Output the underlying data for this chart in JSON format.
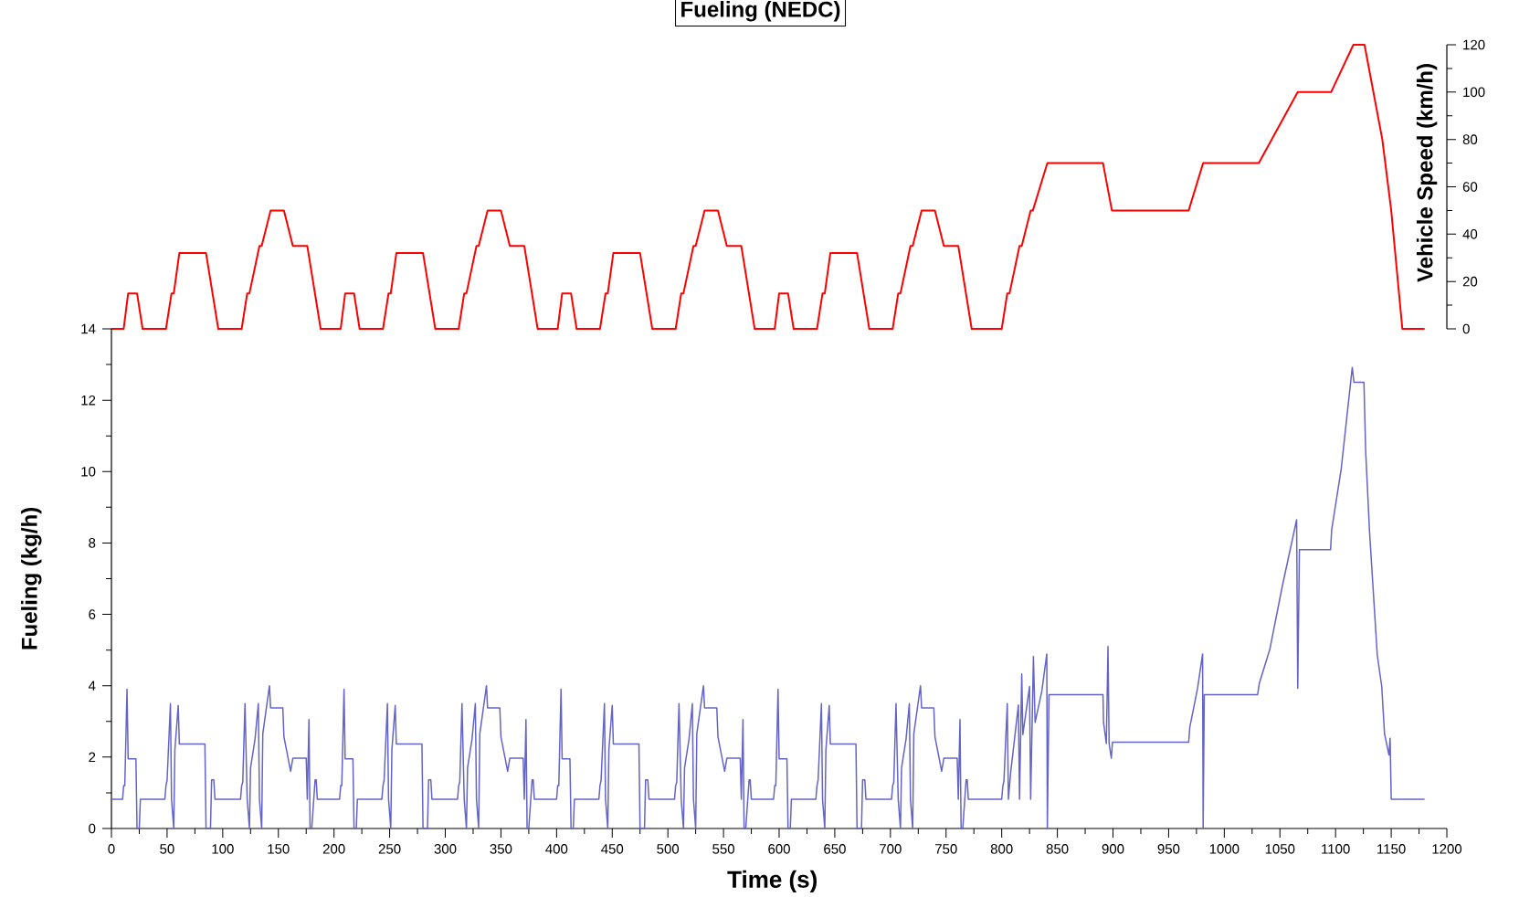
{
  "chart_data": [
    {
      "type": "line",
      "title": "Fueling (NEDC)",
      "ylabel": "Vehicle Speed (km/h)",
      "xlim": [
        0,
        1200
      ],
      "ylim": [
        0,
        120
      ],
      "yticks": [
        0,
        {
          "value": 10,
          "label": null
        },
        20,
        {
          "value": 30,
          "label": null
        },
        40,
        {
          "value": 50,
          "label": null
        },
        60,
        {
          "value": 70,
          "label": null
        },
        80,
        {
          "value": 90,
          "label": null
        },
        100,
        {
          "value": 110,
          "label": null
        },
        120
      ],
      "tick_labels": "y",
      "x": [
        0,
        11,
        15,
        23,
        28,
        49,
        54,
        56,
        61,
        85,
        96,
        117,
        122,
        124,
        133,
        135,
        143,
        155,
        163,
        176,
        188,
        206,
        210,
        218,
        223,
        244,
        249,
        251,
        256,
        280,
        291,
        312,
        317,
        319,
        328,
        330,
        338,
        350,
        358,
        371,
        383,
        401,
        405,
        413,
        418,
        439,
        444,
        446,
        451,
        475,
        486,
        507,
        512,
        514,
        523,
        525,
        533,
        545,
        553,
        566,
        578,
        596,
        600,
        608,
        613,
        634,
        639,
        641,
        646,
        670,
        681,
        702,
        707,
        709,
        718,
        720,
        728,
        740,
        748,
        761,
        773,
        800,
        805,
        807,
        816,
        818,
        826,
        828,
        841,
        891,
        899,
        968,
        981,
        1031,
        1066,
        1096,
        1116,
        1126,
        1142,
        1150,
        1160,
        1180
      ],
      "series": [
        {
          "color": "#ff0000",
          "values": [
            0,
            0,
            15,
            15,
            0,
            0,
            15,
            15,
            32,
            32,
            0,
            0,
            15,
            15,
            35,
            35,
            50,
            50,
            35,
            35,
            0,
            0,
            15,
            15,
            0,
            0,
            15,
            15,
            32,
            32,
            0,
            0,
            15,
            15,
            35,
            35,
            50,
            50,
            35,
            35,
            0,
            0,
            15,
            15,
            0,
            0,
            15,
            15,
            32,
            32,
            0,
            0,
            15,
            15,
            35,
            35,
            50,
            50,
            35,
            35,
            0,
            0,
            15,
            15,
            0,
            0,
            15,
            15,
            32,
            32,
            0,
            0,
            15,
            15,
            35,
            35,
            50,
            50,
            35,
            35,
            0,
            0,
            15,
            15,
            35,
            35,
            50,
            50,
            70,
            70,
            50,
            50,
            70,
            70,
            100,
            100,
            120,
            120,
            80,
            50,
            0,
            0
          ]
        }
      ]
    },
    {
      "type": "line",
      "xlabel": "Time (s)",
      "ylabel": "Fueling (kg/h)",
      "xlim": [
        0,
        1200
      ],
      "ylim": [
        0,
        14
      ],
      "xticks": [
        0,
        {
          "value": 25,
          "label": null
        },
        50,
        {
          "value": 75,
          "label": null
        },
        100,
        {
          "value": 125,
          "label": null
        },
        150,
        {
          "value": 175,
          "label": null
        },
        200,
        {
          "value": 225,
          "label": null
        },
        250,
        {
          "value": 275,
          "label": null
        },
        300,
        {
          "value": 325,
          "label": null
        },
        350,
        {
          "value": 375,
          "label": null
        },
        400,
        {
          "value": 425,
          "label": null
        },
        450,
        {
          "value": 475,
          "label": null
        },
        500,
        {
          "value": 525,
          "label": null
        },
        550,
        {
          "value": 575,
          "label": null
        },
        600,
        {
          "value": 625,
          "label": null
        },
        650,
        {
          "value": 675,
          "label": null
        },
        700,
        {
          "value": 725,
          "label": null
        },
        750,
        {
          "value": 775,
          "label": null
        },
        800,
        {
          "value": 825,
          "label": null
        },
        850,
        {
          "value": 875,
          "label": null
        },
        900,
        {
          "value": 925,
          "label": null
        },
        950,
        {
          "value": 975,
          "label": null
        },
        1000,
        {
          "value": 1025,
          "label": null
        },
        1050,
        {
          "value": 1075,
          "label": null
        },
        1100,
        {
          "value": 1125,
          "label": null
        },
        1150,
        {
          "value": 1175,
          "label": null
        },
        1200
      ],
      "yticks": [
        0,
        {
          "value": 1,
          "label": null
        },
        2,
        {
          "value": 3,
          "label": null
        },
        4,
        {
          "value": 5,
          "label": null
        },
        6,
        {
          "value": 7,
          "label": null
        },
        8,
        {
          "value": 9,
          "label": null
        },
        10,
        {
          "value": 11,
          "label": null
        },
        12,
        {
          "value": 13,
          "label": null
        },
        14
      ],
      "x": [
        0,
        10,
        11,
        12,
        14,
        15,
        22,
        23,
        25,
        26,
        48,
        49,
        50,
        53,
        54,
        56,
        57,
        60,
        61,
        84,
        85,
        89,
        90,
        92,
        93,
        116,
        117,
        118,
        120,
        122,
        124,
        125,
        129,
        132,
        133,
        135,
        136,
        142,
        143,
        154,
        155,
        159,
        161,
        163,
        175,
        176,
        177.5,
        178.5,
        180,
        183,
        184,
        185,
        205,
        206,
        207,
        209,
        210,
        217,
        218,
        220,
        221,
        243,
        244,
        245,
        248,
        249,
        251,
        252,
        255,
        256,
        279,
        280,
        284,
        285,
        287,
        288,
        311,
        312,
        313,
        315,
        317,
        319,
        320,
        324,
        327,
        328,
        330,
        331,
        337,
        338,
        349,
        350,
        354,
        356,
        358,
        370,
        371,
        372.5,
        373.5,
        375,
        378,
        379,
        380,
        400,
        401,
        402,
        404,
        405,
        412,
        413,
        415,
        416,
        438,
        439,
        440,
        443,
        444,
        446,
        447,
        450,
        451,
        474,
        475,
        479,
        480,
        482,
        483,
        506,
        507,
        508,
        510,
        512,
        514,
        515,
        519,
        522,
        523,
        525,
        526,
        532,
        533,
        544,
        545,
        549,
        551,
        553,
        565,
        566,
        567.5,
        568.5,
        570,
        573,
        574,
        575,
        595,
        596,
        597,
        599,
        600,
        607,
        608,
        610,
        611,
        633,
        634,
        635,
        638,
        639,
        641,
        642,
        645,
        646,
        669,
        670,
        674,
        675,
        677,
        678,
        701,
        702,
        703,
        705,
        707,
        709,
        710,
        714,
        717,
        718,
        720,
        721,
        727,
        728,
        739,
        740,
        744,
        746,
        748,
        760,
        761,
        762.5,
        763.5,
        765,
        768,
        769,
        770,
        800,
        801,
        802,
        805,
        806,
        808,
        815,
        816,
        818,
        819,
        825,
        826,
        828.5,
        830,
        836,
        840.5,
        841,
        842.5,
        891,
        891.5,
        894,
        895.5,
        896.5,
        898.5,
        899.5,
        968,
        969,
        976,
        980.5,
        981,
        982,
        1030,
        1031.5,
        1041,
        1052,
        1065,
        1066,
        1067.5,
        1095.5,
        1096.5,
        1105,
        1115,
        1116.5,
        1125.5,
        1127,
        1130.5,
        1137.5,
        1141.5,
        1144,
        1148,
        1149,
        1150,
        1180
      ],
      "series": [
        {
          "color": "#6464c8",
          "values": [
            0.82,
            0.82,
            1.2,
            1.2,
            3.9,
            1.95,
            1.95,
            0,
            0,
            0.82,
            0.82,
            1.2,
            1.35,
            3.5,
            0.82,
            0,
            2.2,
            3.45,
            2.37,
            2.37,
            0,
            0,
            1.36,
            1.36,
            0.82,
            0.82,
            1.2,
            1.3,
            3.5,
            0.82,
            0,
            1.7,
            2.5,
            3.5,
            0.82,
            0,
            2.65,
            4,
            3.38,
            3.38,
            2.57,
            1.93,
            1.6,
            1.97,
            1.97,
            0.82,
            3.05,
            0,
            0,
            1.36,
            1.36,
            0.82,
            0.82,
            1.2,
            1.2,
            3.9,
            1.95,
            1.95,
            0,
            0,
            0.82,
            0.82,
            1.2,
            1.35,
            3.5,
            0.82,
            0,
            2.2,
            3.45,
            2.37,
            2.37,
            0,
            0,
            1.36,
            1.36,
            0.82,
            0.82,
            1.2,
            1.3,
            3.5,
            0.82,
            0,
            1.7,
            2.5,
            3.5,
            0.82,
            0,
            2.65,
            4,
            3.38,
            3.38,
            2.57,
            1.93,
            1.6,
            1.97,
            1.97,
            0.82,
            3.05,
            0,
            0,
            1.36,
            1.36,
            0.82,
            0.82,
            1.2,
            1.2,
            3.9,
            1.95,
            1.95,
            0,
            0,
            0.82,
            0.82,
            1.2,
            1.35,
            3.5,
            0.82,
            0,
            2.2,
            3.45,
            2.37,
            2.37,
            0,
            0,
            1.36,
            1.36,
            0.82,
            0.82,
            1.2,
            1.3,
            3.5,
            0.82,
            0,
            1.7,
            2.5,
            3.5,
            0.82,
            0,
            2.65,
            4,
            3.38,
            3.38,
            2.57,
            1.93,
            1.6,
            1.97,
            1.97,
            0.82,
            3.05,
            0,
            0,
            1.36,
            1.36,
            0.82,
            0.82,
            1.2,
            1.2,
            3.9,
            1.95,
            1.95,
            0,
            0,
            0.82,
            0.82,
            1.2,
            1.35,
            3.5,
            0.82,
            0,
            2.2,
            3.45,
            2.37,
            2.37,
            0,
            0,
            1.36,
            1.36,
            0.82,
            0.82,
            1.2,
            1.3,
            3.5,
            0.82,
            0,
            1.7,
            2.5,
            3.5,
            0.82,
            0,
            2.65,
            4,
            3.38,
            3.38,
            2.57,
            1.93,
            1.6,
            1.97,
            1.97,
            0.82,
            3.05,
            0,
            0,
            1.36,
            1.36,
            0.82,
            0.82,
            1.19,
            1.33,
            3.5,
            0.82,
            1.56,
            3.46,
            0.82,
            4.33,
            2.63,
            3.98,
            0.82,
            4.82,
            2.97,
            3.84,
            4.89,
            0,
            3.75,
            3.75,
            2.97,
            2.38,
            5.1,
            2.38,
            1.97,
            2.42,
            2.42,
            2.84,
            3.93,
            4.89,
            0,
            3.75,
            3.75,
            4.07,
            5.03,
            6.77,
            8.65,
            3.93,
            7.81,
            7.81,
            8.37,
            10.06,
            12.92,
            12.5,
            12.5,
            10.61,
            8.33,
            4.85,
            3.98,
            2.65,
            2.06,
            2.53,
            0.82,
            0.82
          ]
        }
      ]
    }
  ]
}
